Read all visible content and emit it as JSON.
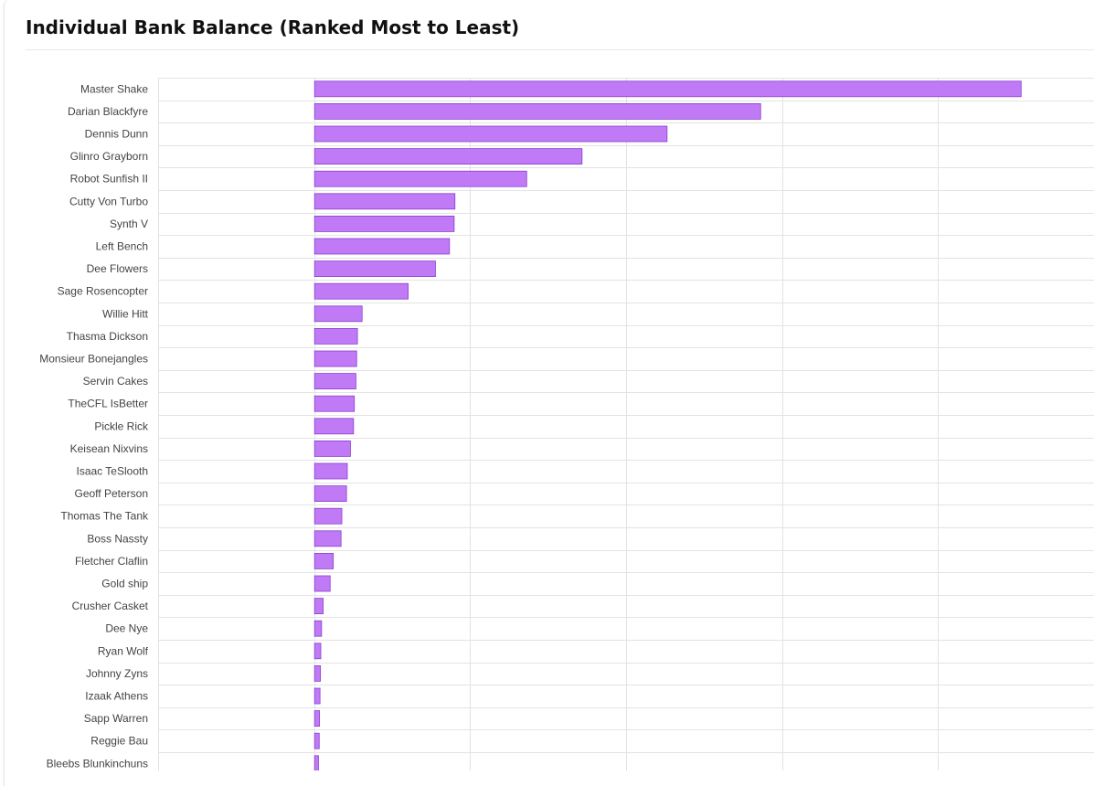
{
  "page": {
    "title": "Individual Bank Balance (Ranked Most to Least)"
  },
  "colors": {
    "bar_fill": "#c07af5",
    "bar_stroke": "#8a3fcf",
    "grid": "#e3e3e3"
  },
  "chart_data": {
    "type": "bar",
    "orientation": "horizontal",
    "title": "Individual Bank Balance (Ranked Most to Least)",
    "xlabel": "",
    "ylabel": "",
    "grid": true,
    "xlim": [
      -1000,
      5000
    ],
    "categories": [
      "Master Shake",
      "Darian Blackfyre",
      "Dennis Dunn",
      "Glinro Grayborn",
      "Robot Sunfish II",
      "Cutty Von Turbo",
      "Synth V",
      "Left Bench",
      "Dee Flowers",
      "Sage Rosencopter",
      "Willie Hitt",
      "Thasma Dickson",
      "Monsieur Bonejangles",
      "Servin Cakes",
      "TheCFL IsBetter",
      "Pickle Rick",
      "Keisean Nixvins",
      "Isaac TeSlooth",
      "Geoff Peterson",
      "Thomas The Tank",
      "Boss Nassty",
      "Fletcher Claflin",
      "Gold ship",
      "Crusher Casket",
      "Dee Nye",
      "Ryan Wolf",
      "Johnny Zyns",
      "Izaak Athens",
      "Sapp Warren",
      "Reggie Bau",
      "Bleebs Blunkinchuns"
    ],
    "values": [
      4530,
      2860,
      2260,
      1715,
      1360,
      900,
      895,
      865,
      775,
      600,
      305,
      275,
      270,
      265,
      255,
      250,
      230,
      210,
      205,
      175,
      170,
      120,
      100,
      55,
      45,
      40,
      38,
      35,
      32,
      30,
      25
    ]
  }
}
